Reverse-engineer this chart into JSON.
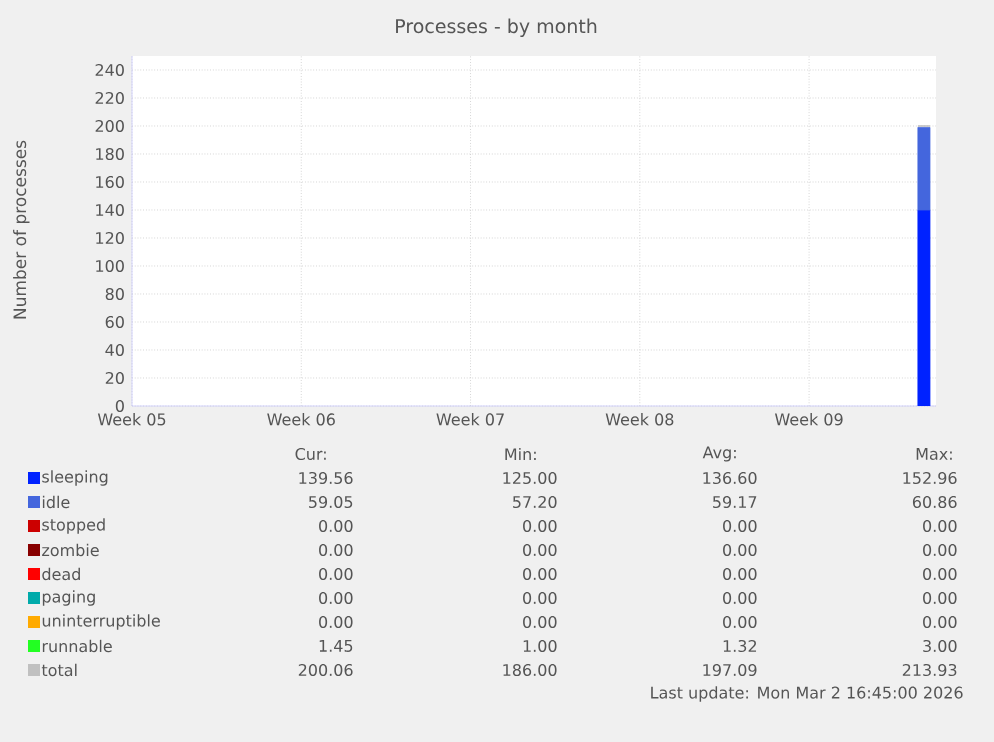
{
  "chart_data": {
    "type": "area",
    "stacked": true,
    "title": "Processes - by month",
    "ylabel": "Number of processes",
    "categories": [
      "Week 05",
      null,
      null,
      null,
      null,
      null,
      null,
      null,
      null,
      null,
      null,
      null,
      null,
      null,
      "Week 06",
      null,
      null,
      null,
      null,
      null,
      null,
      null,
      null,
      null,
      null,
      null,
      null,
      null,
      "Week 07",
      null,
      null,
      null,
      null,
      null,
      null,
      null,
      null,
      null,
      null,
      null,
      null,
      null,
      "Week 08",
      null,
      null,
      null,
      null,
      null,
      null,
      null,
      null,
      null,
      null,
      null,
      null,
      null,
      "Week 09",
      null,
      null,
      null,
      null,
      null,
      null,
      null,
      null,
      null,
      null
    ],
    "ylim": [
      0,
      250
    ],
    "yticks": [
      0,
      20,
      40,
      60,
      80,
      100,
      120,
      140,
      160,
      180,
      200,
      220,
      240
    ],
    "grid": true,
    "legend": "bottom",
    "series": [
      {
        "name": "sleeping",
        "color": "#0022ff",
        "values": [
          null,
          null,
          null,
          null,
          null,
          null,
          null,
          null,
          null,
          null,
          null,
          null,
          null,
          null,
          null,
          null,
          null,
          null,
          null,
          null,
          null,
          null,
          null,
          null,
          null,
          null,
          null,
          null,
          null,
          null,
          null,
          null,
          null,
          null,
          null,
          null,
          null,
          null,
          null,
          null,
          null,
          null,
          null,
          null,
          null,
          null,
          null,
          null,
          null,
          null,
          null,
          null,
          null,
          null,
          null,
          null,
          null,
          null,
          null,
          null,
          null,
          null,
          null,
          null,
          null,
          140,
          140
        ]
      },
      {
        "name": "idle",
        "color": "#4466dd",
        "values": [
          null,
          null,
          null,
          null,
          null,
          null,
          null,
          null,
          null,
          null,
          null,
          null,
          null,
          null,
          null,
          null,
          null,
          null,
          null,
          null,
          null,
          null,
          null,
          null,
          null,
          null,
          null,
          null,
          null,
          null,
          null,
          null,
          null,
          null,
          null,
          null,
          null,
          null,
          null,
          null,
          null,
          null,
          null,
          null,
          null,
          null,
          null,
          null,
          null,
          null,
          null,
          null,
          null,
          null,
          null,
          null,
          null,
          null,
          null,
          null,
          null,
          null,
          null,
          null,
          null,
          59,
          59
        ]
      },
      {
        "name": "stopped",
        "color": "#cc0000",
        "values": [
          null,
          null,
          null,
          null,
          null,
          null,
          null,
          null,
          null,
          null,
          null,
          null,
          null,
          null,
          null,
          null,
          null,
          null,
          null,
          null,
          null,
          null,
          null,
          null,
          null,
          null,
          null,
          null,
          null,
          null,
          null,
          null,
          null,
          null,
          null,
          null,
          null,
          null,
          null,
          null,
          null,
          null,
          null,
          null,
          null,
          null,
          null,
          null,
          null,
          null,
          null,
          null,
          null,
          null,
          null,
          null,
          null,
          null,
          null,
          null,
          null,
          null,
          null,
          null,
          null,
          null,
          null
        ]
      },
      {
        "name": "zombie",
        "color": "#880000",
        "values": [
          null,
          null,
          null,
          null,
          null,
          null,
          null,
          null,
          null,
          null,
          null,
          null,
          null,
          null,
          null,
          null,
          null,
          null,
          null,
          null,
          null,
          null,
          null,
          null,
          null,
          null,
          null,
          null,
          null,
          null,
          null,
          null,
          null,
          null,
          null,
          null,
          null,
          null,
          null,
          null,
          null,
          null,
          null,
          null,
          null,
          null,
          null,
          null,
          null,
          null,
          null,
          null,
          null,
          null,
          null,
          null,
          null,
          null,
          null,
          null,
          null,
          null,
          null,
          null,
          null,
          null,
          null
        ]
      },
      {
        "name": "dead",
        "color": "#ff0000",
        "values": [
          null,
          null,
          null,
          null,
          null,
          null,
          null,
          null,
          null,
          null,
          null,
          null,
          null,
          null,
          null,
          null,
          null,
          null,
          null,
          null,
          null,
          null,
          null,
          null,
          null,
          null,
          null,
          null,
          null,
          null,
          null,
          null,
          null,
          null,
          null,
          null,
          null,
          null,
          null,
          null,
          null,
          null,
          null,
          null,
          null,
          null,
          null,
          null,
          null,
          null,
          null,
          null,
          null,
          null,
          null,
          null,
          null,
          null,
          null,
          null,
          null,
          null,
          null,
          null,
          null,
          null,
          null
        ]
      },
      {
        "name": "paging",
        "color": "#00aaaa",
        "values": [
          null,
          null,
          null,
          null,
          null,
          null,
          null,
          null,
          null,
          null,
          null,
          null,
          null,
          null,
          null,
          null,
          null,
          null,
          null,
          null,
          null,
          null,
          null,
          null,
          null,
          null,
          null,
          null,
          null,
          null,
          null,
          null,
          null,
          null,
          null,
          null,
          null,
          null,
          null,
          null,
          null,
          null,
          null,
          null,
          null,
          null,
          null,
          null,
          null,
          null,
          null,
          null,
          null,
          null,
          null,
          null,
          null,
          null,
          null,
          null,
          null,
          null,
          null,
          null,
          null,
          null,
          null
        ]
      },
      {
        "name": "uninterruptible",
        "color": "#ffaa00",
        "values": [
          null,
          null,
          null,
          null,
          null,
          null,
          null,
          null,
          null,
          null,
          null,
          null,
          null,
          null,
          null,
          null,
          null,
          null,
          null,
          null,
          null,
          null,
          null,
          null,
          null,
          null,
          null,
          null,
          null,
          null,
          null,
          null,
          null,
          null,
          null,
          null,
          null,
          null,
          null,
          null,
          null,
          null,
          null,
          null,
          null,
          null,
          null,
          null,
          null,
          null,
          null,
          null,
          null,
          null,
          null,
          null,
          null,
          null,
          null,
          null,
          null,
          null,
          null,
          null,
          null,
          null,
          null
        ]
      },
      {
        "name": "runnable",
        "color": "#22ff22",
        "values": [
          null,
          null,
          null,
          null,
          null,
          null,
          null,
          null,
          null,
          null,
          null,
          null,
          null,
          null,
          null,
          null,
          null,
          null,
          null,
          null,
          null,
          null,
          null,
          null,
          null,
          null,
          null,
          null,
          null,
          null,
          null,
          null,
          null,
          null,
          null,
          null,
          null,
          null,
          null,
          null,
          null,
          null,
          null,
          null,
          null,
          null,
          null,
          null,
          null,
          null,
          null,
          null,
          null,
          null,
          null,
          null,
          null,
          null,
          null,
          null,
          null,
          null,
          null,
          null,
          null,
          null,
          null
        ]
      },
      {
        "name": "total",
        "type": "line",
        "color": "#c0c0c0",
        "values": [
          null,
          null,
          null,
          null,
          null,
          null,
          null,
          null,
          null,
          null,
          null,
          null,
          null,
          null,
          null,
          null,
          null,
          null,
          null,
          null,
          null,
          null,
          null,
          null,
          null,
          null,
          null,
          null,
          null,
          null,
          null,
          null,
          null,
          null,
          null,
          null,
          null,
          null,
          null,
          null,
          null,
          null,
          null,
          null,
          null,
          null,
          null,
          null,
          null,
          null,
          null,
          null,
          null,
          null,
          null,
          null,
          null,
          null,
          null,
          null,
          null,
          null,
          null,
          null,
          null,
          200,
          200
        ]
      }
    ],
    "annotations": [
      "Cur:",
      "Min:",
      "Avg:",
      "Max:",
      "139.56",
      "125.00",
      "136.60",
      "152.96",
      "59.05",
      "57.20",
      "59.17",
      "60.86",
      "0.00",
      "0.00",
      "0.00",
      "0.00",
      "0.00",
      "0.00",
      "0.00",
      "0.00",
      "0.00",
      "0.00",
      "0.00",
      "0.00",
      "0.00",
      "0.00",
      "0.00",
      "0.00",
      "0.00",
      "0.00",
      "0.00",
      "0.00",
      "1.45",
      "1.00",
      "1.32",
      "3.00",
      "200.06",
      "186.00",
      "197.09",
      "213.93",
      "Last update: Mon Mar  2 16:45:00 2026"
    ]
  }
}
